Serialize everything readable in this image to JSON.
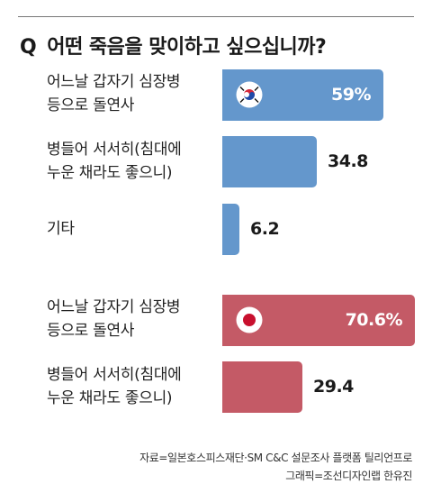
{
  "title": {
    "prefix": "Q",
    "text": "어떤 죽음을 맞이하고 싶으십니까?"
  },
  "chart_data": {
    "type": "bar",
    "orientation": "horizontal",
    "xlim": [
      0,
      100
    ],
    "groups": [
      {
        "flag_icon": "south-korea-flag-icon",
        "color": "#6497cc",
        "items": [
          {
            "label_lines": [
              "어느날 갑자기 심장병",
              "등으로 돌연사"
            ],
            "value": 59,
            "value_label": "59%",
            "label_inside": true
          },
          {
            "label_lines": [
              "병들어 서서히(침대에",
              "누운 채라도 좋으니)"
            ],
            "value": 34.8,
            "value_label": "34.8",
            "label_inside": false
          },
          {
            "label_lines": [
              "기타"
            ],
            "value": 6.2,
            "value_label": "6.2",
            "label_inside": false
          }
        ]
      },
      {
        "flag_icon": "japan-flag-icon",
        "color": "#c45a66",
        "items": [
          {
            "label_lines": [
              "어느날 갑자기 심장병",
              "등으로 돌연사"
            ],
            "value": 70.6,
            "value_label": "70.6%",
            "label_inside": true
          },
          {
            "label_lines": [
              "병들어 서서히(침대에",
              "누운 채라도 좋으니)"
            ],
            "value": 29.4,
            "value_label": "29.4",
            "label_inside": false
          }
        ]
      }
    ]
  },
  "source": {
    "line1": "자료=일본호스피스재단·SM C&C 설문조사 플랫폼 틸리언프로",
    "line2": "그래픽=조선디자인랩 한유진"
  }
}
